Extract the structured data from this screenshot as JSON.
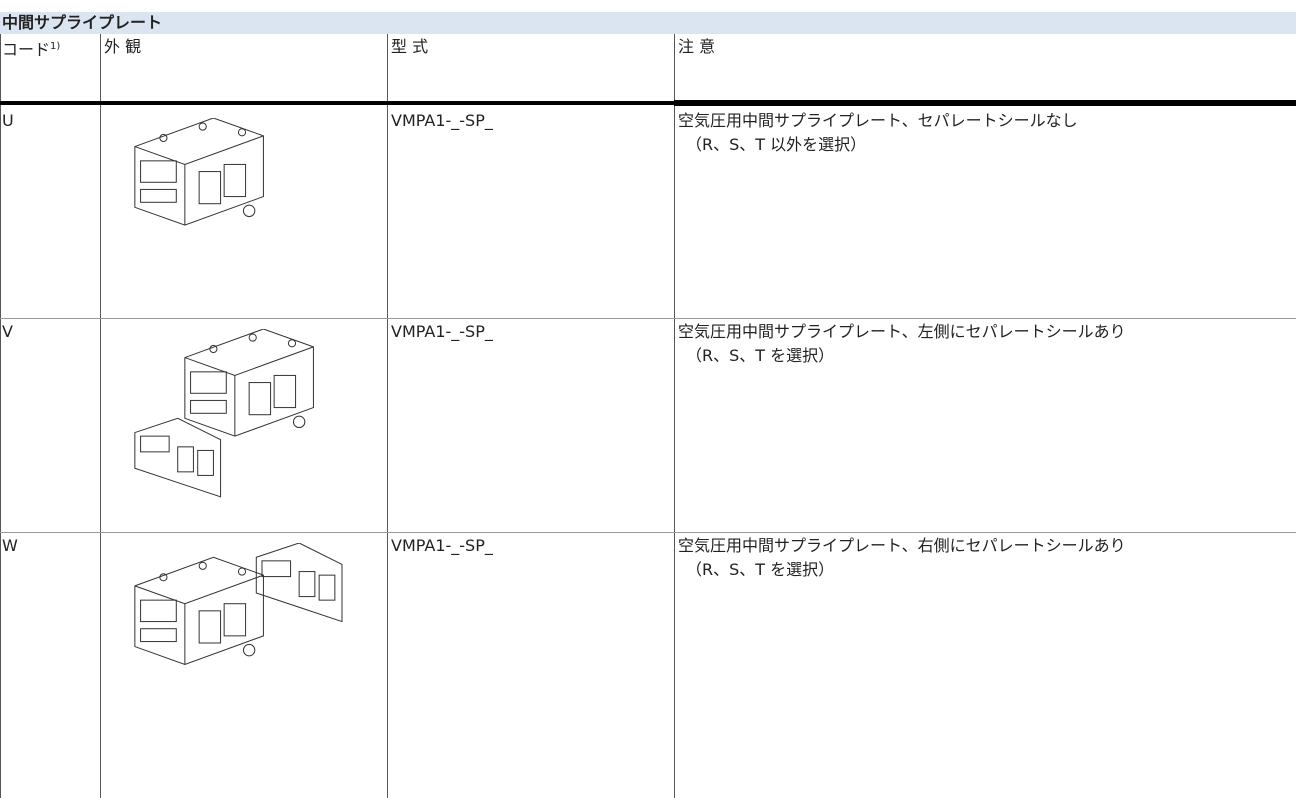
{
  "header": {
    "title": "中間サプライプレート"
  },
  "table": {
    "columns": [
      "コード",
      "外 観",
      "型 式",
      "注 意"
    ],
    "code_footnote": "1)",
    "rows": [
      {
        "code": "U",
        "model": "VMPA1-_-SP_",
        "note": "空気圧用中間サプライプレート、セパレートシールなし",
        "note_sub": "（R、S、T 以外を選択）"
      },
      {
        "code": "V",
        "model": "VMPA1-_-SP_",
        "note": "空気圧用中間サプライプレート、左側にセパレートシールあり",
        "note_sub": "（R、S、T を選択）"
      },
      {
        "code": "W",
        "model": "VMPA1-_-SP_",
        "note": "空気圧用中間サプライプレート、右側にセパレートシールあり",
        "note_sub": "（R、S、T を選択）"
      }
    ]
  }
}
